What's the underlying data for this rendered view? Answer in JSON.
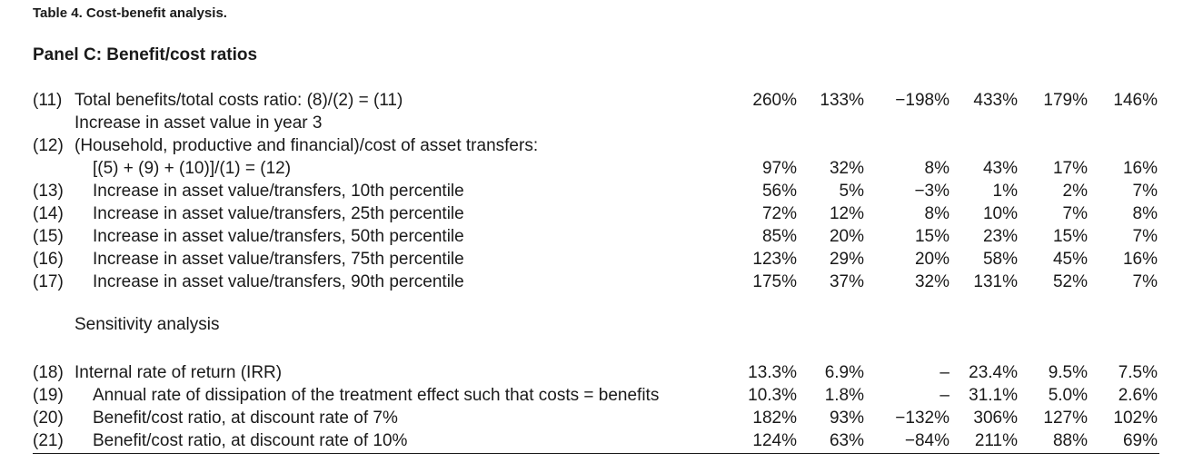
{
  "table_title": "Table 4. Cost-benefit analysis.",
  "panel_title": "Panel C: Benefit/cost ratios",
  "section_label": "Sensitivity analysis",
  "rows": [
    {
      "num": "(11)",
      "label": "Total benefits/total costs ratio: (8)/(2) = (11)",
      "values": [
        "260%",
        "133%",
        "−198%",
        "433%",
        "179%",
        "146%"
      ]
    },
    {
      "num": "",
      "label": "Increase in asset value in year 3",
      "values": [
        "",
        "",
        "",
        "",
        "",
        ""
      ]
    },
    {
      "num": "(12)",
      "label": "(Household, productive and financial)/cost of asset transfers:",
      "values": [
        "",
        "",
        "",
        "",
        "",
        ""
      ]
    },
    {
      "num": "",
      "label": "[(5) + (9) + (10)]/(1) = (12)",
      "values": [
        "97%",
        "32%",
        "8%",
        "43%",
        "17%",
        "16%"
      ]
    },
    {
      "num": "(13)",
      "label": "Increase in asset value/transfers, 10th percentile",
      "values": [
        "56%",
        "5%",
        "−3%",
        "1%",
        "2%",
        "7%"
      ]
    },
    {
      "num": "(14)",
      "label": "Increase in asset value/transfers, 25th percentile",
      "values": [
        "72%",
        "12%",
        "8%",
        "10%",
        "7%",
        "8%"
      ]
    },
    {
      "num": "(15)",
      "label": "Increase in asset value/transfers, 50th percentile",
      "values": [
        "85%",
        "20%",
        "15%",
        "23%",
        "15%",
        "7%"
      ]
    },
    {
      "num": "(16)",
      "label": "Increase in asset value/transfers, 75th percentile",
      "values": [
        "123%",
        "29%",
        "20%",
        "58%",
        "45%",
        "16%"
      ]
    },
    {
      "num": "(17)",
      "label": "Increase in asset value/transfers, 90th percentile",
      "values": [
        "175%",
        "37%",
        "32%",
        "131%",
        "52%",
        "7%"
      ]
    },
    {
      "num": "(18)",
      "label": "Internal rate of return (IRR)",
      "values": [
        "13.3%",
        "6.9%",
        "–",
        "23.4%",
        "9.5%",
        "7.5%"
      ]
    },
    {
      "num": "(19)",
      "label": "Annual rate of dissipation of the treatment effect such that costs = benefits",
      "values": [
        "10.3%",
        "1.8%",
        "–",
        "31.1%",
        "5.0%",
        "2.6%"
      ]
    },
    {
      "num": "(20)",
      "label": "Benefit/cost ratio, at discount rate of 7%",
      "values": [
        "182%",
        "93%",
        "−132%",
        "306%",
        "127%",
        "102%"
      ]
    },
    {
      "num": "(21)",
      "label": "Benefit/cost ratio, at discount rate of 10%",
      "values": [
        "124%",
        "63%",
        "−84%",
        "211%",
        "88%",
        "69%"
      ]
    }
  ]
}
